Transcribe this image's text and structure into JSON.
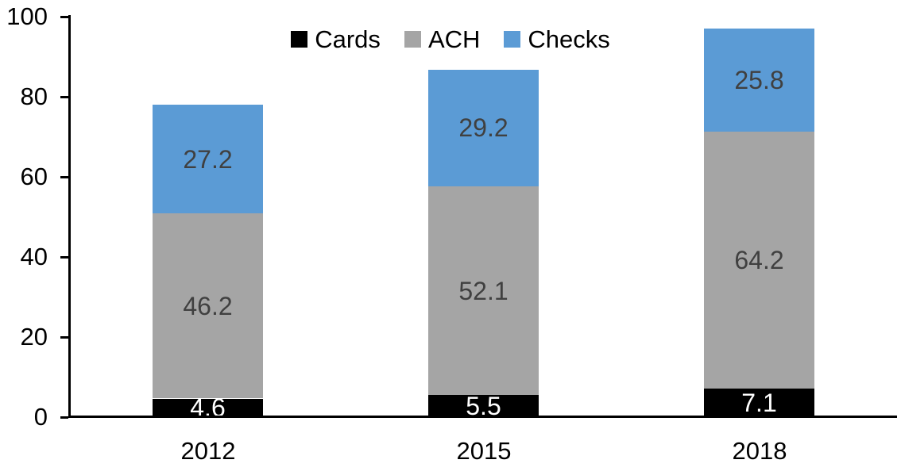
{
  "chart_data": {
    "type": "bar",
    "stacked": true,
    "title": "",
    "categories": [
      "2012",
      "2015",
      "2018"
    ],
    "series": [
      {
        "name": "Cards",
        "color": "#000000",
        "label_color": "#FFFFFF",
        "values": [
          4.6,
          5.5,
          7.1
        ]
      },
      {
        "name": "ACH",
        "color": "#A5A5A5",
        "label_color": "#404040",
        "values": [
          46.2,
          52.1,
          64.2
        ]
      },
      {
        "name": "Checks",
        "color": "#5B9BD5",
        "label_color": "#404040",
        "values": [
          27.2,
          29.2,
          25.8
        ]
      }
    ],
    "totals": [
      78.0,
      86.8,
      97.1
    ],
    "y_axis": {
      "min": 0,
      "max": 100,
      "tick_interval": 20,
      "tick_labels": [
        "0",
        "20",
        "40",
        "60",
        "80",
        "100"
      ]
    },
    "x_axis": {
      "labels": [
        "2012",
        "2015",
        "2018"
      ]
    },
    "legend": {
      "position": "top",
      "entries": [
        "Cards",
        "ACH",
        "Checks"
      ]
    },
    "grid": false,
    "background_color": "#FFFFFF",
    "axis_color": "#000000"
  }
}
